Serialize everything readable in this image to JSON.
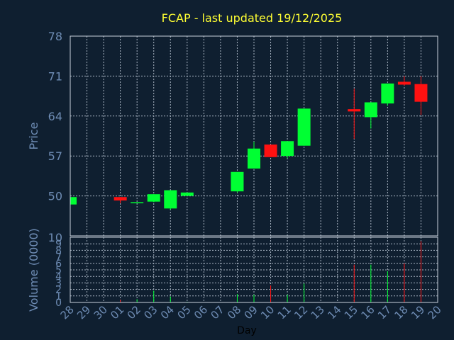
{
  "chart_data": {
    "type": "candlestick",
    "title": "FCAP - last updated 19/12/2025",
    "xlabel": "Day",
    "ylabel": "Price",
    "volume_label": "Volume (0000)",
    "grid": true,
    "price_ylim": [
      43,
      78
    ],
    "price_ticks": [
      "78",
      "71",
      "64",
      "57",
      "50"
    ],
    "price_tick_values": [
      78,
      71,
      64,
      57,
      50
    ],
    "volume_ylim": [
      0,
      10
    ],
    "volume_ticks": [
      "10",
      "9",
      "8",
      "7",
      "6",
      "5",
      "4",
      "3",
      "2",
      "1",
      "0"
    ],
    "volume_tick_values": [
      10,
      9,
      8,
      7,
      6,
      5,
      4,
      3,
      2,
      1,
      0
    ],
    "x_labels": [
      "28",
      "29",
      "30",
      "01",
      "02",
      "03",
      "04",
      "05",
      "06",
      "07",
      "08",
      "09",
      "10",
      "11",
      "12",
      "13",
      "14",
      "15",
      "16",
      "17",
      "18",
      "19",
      "20"
    ],
    "candles": [
      {
        "day": "28",
        "open": 48.5,
        "high": 49.8,
        "low": 48.3,
        "close": 49.8,
        "volume": 0.0
      },
      {
        "day": "01",
        "open": 49.8,
        "high": 49.8,
        "low": 48.7,
        "close": 49.2,
        "volume": 0.4
      },
      {
        "day": "02",
        "open": 48.8,
        "high": 48.9,
        "low": 48.7,
        "close": 48.9,
        "volume": 0.5
      },
      {
        "day": "03",
        "open": 49.0,
        "high": 50.3,
        "low": 48.9,
        "close": 50.3,
        "volume": 1.8
      },
      {
        "day": "04",
        "open": 47.8,
        "high": 51.0,
        "low": 47.6,
        "close": 51.0,
        "volume": 0.9
      },
      {
        "day": "05",
        "open": 50.0,
        "high": 50.6,
        "low": 50.0,
        "close": 50.6,
        "volume": 0.1
      },
      {
        "day": "08",
        "open": 50.8,
        "high": 54.2,
        "low": 50.6,
        "close": 54.2,
        "volume": 1.3
      },
      {
        "day": "09",
        "open": 54.8,
        "high": 59.5,
        "low": 54.8,
        "close": 58.3,
        "volume": 1.2
      },
      {
        "day": "10",
        "open": 59.0,
        "high": 59.0,
        "low": 56.8,
        "close": 56.8,
        "volume": 2.6
      },
      {
        "day": "11",
        "open": 57.0,
        "high": 59.6,
        "low": 56.6,
        "close": 59.6,
        "volume": 1.2
      },
      {
        "day": "12",
        "open": 58.8,
        "high": 65.3,
        "low": 58.8,
        "close": 65.3,
        "volume": 2.9
      },
      {
        "day": "15",
        "open": 65.2,
        "high": 68.8,
        "low": 60.0,
        "close": 64.8,
        "volume": 5.8
      },
      {
        "day": "16",
        "open": 63.8,
        "high": 66.4,
        "low": 61.8,
        "close": 66.4,
        "volume": 5.8
      },
      {
        "day": "17",
        "open": 66.2,
        "high": 69.7,
        "low": 65.8,
        "close": 69.7,
        "volume": 4.8
      },
      {
        "day": "18",
        "open": 70.0,
        "high": 71.0,
        "low": 69.3,
        "close": 69.5,
        "volume": 6.0
      },
      {
        "day": "19",
        "open": 69.6,
        "high": 71.0,
        "low": 64.2,
        "close": 66.5,
        "volume": 9.4
      }
    ],
    "colors": {
      "background": "#0f1f30",
      "up": "#00ff33",
      "down": "#ff1111",
      "title": "#ffff33",
      "axis_text": "#6e8cb4",
      "frame": "#c8d2dc",
      "grid": "#a8b4c2"
    }
  }
}
